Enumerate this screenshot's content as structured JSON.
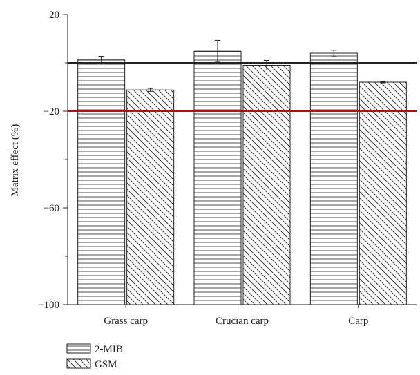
{
  "chart_data": {
    "type": "bar",
    "title": "",
    "xlabel": "",
    "ylabel": "Matrix effect (%)",
    "ylim": [
      -100,
      20
    ],
    "yticks": [
      20,
      -20,
      -60,
      -100
    ],
    "categories": [
      "Grass carp",
      "Crucian carp",
      "Carp"
    ],
    "series": [
      {
        "name": "2-MIB",
        "pattern": "horizontal-lines",
        "values": [
          1.2,
          4.8,
          4.0
        ],
        "errors": [
          1.5,
          4.5,
          1.2
        ]
      },
      {
        "name": "GSM",
        "pattern": "diagonal-lines",
        "values": [
          -11.2,
          -1.0,
          -8.0
        ],
        "errors": [
          0.6,
          2.0,
          0.3
        ]
      }
    ],
    "reference_lines": [
      {
        "y": 0,
        "color": "#222222"
      },
      {
        "y": -20,
        "color": "#a31515"
      }
    ],
    "grid": false,
    "legend_position": "bottom-left"
  }
}
